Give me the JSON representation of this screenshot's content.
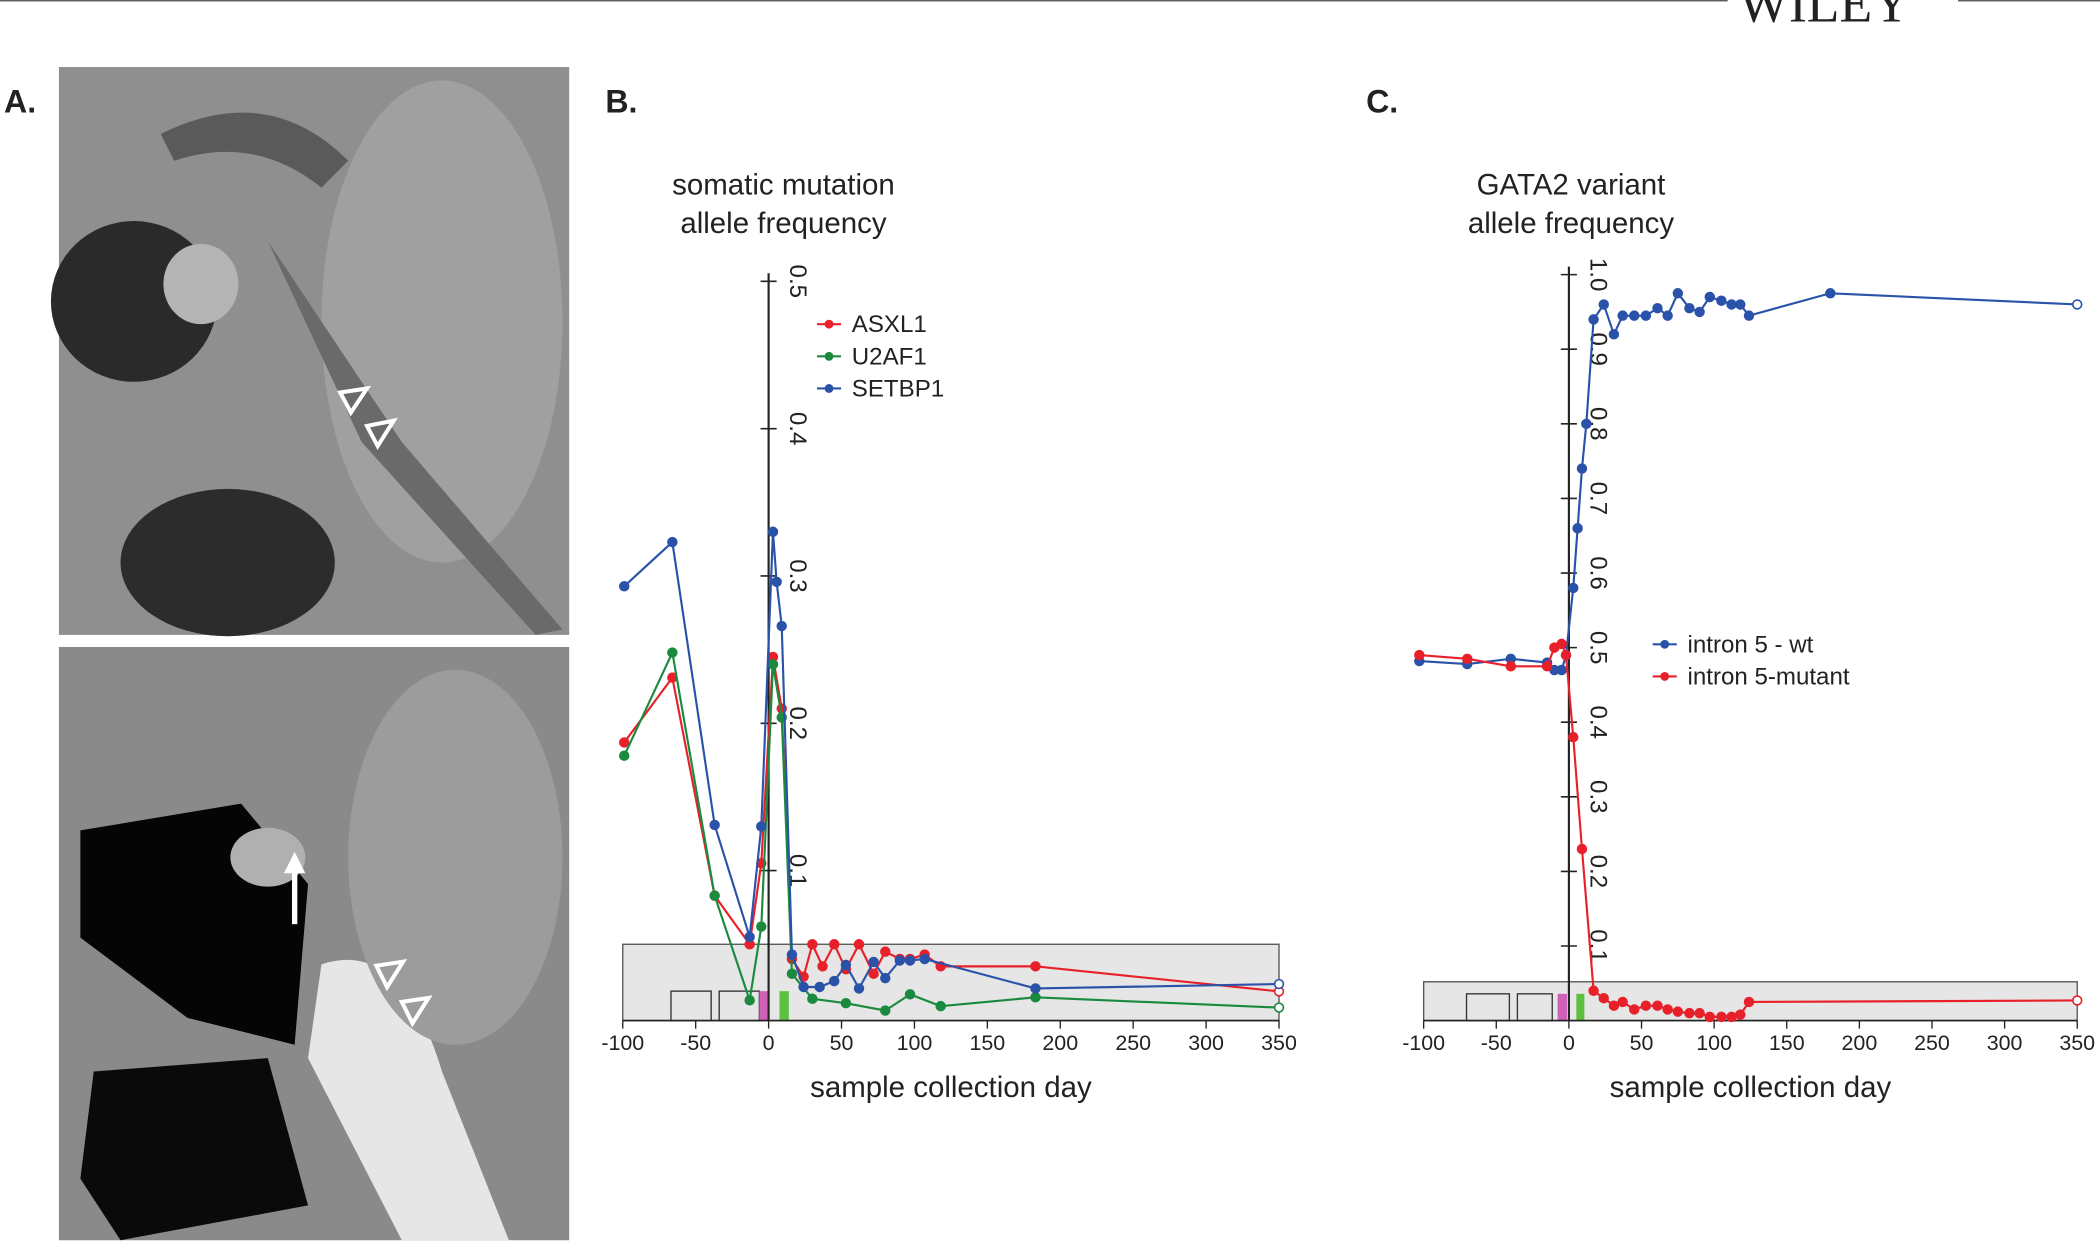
{
  "publisher": "WILEY",
  "panel_labels": [
    "A.",
    "B.",
    "C."
  ],
  "chart_data": [
    {
      "type": "line",
      "title": [
        "somatic mutation",
        "allele frequency"
      ],
      "x_label": "sample collection day",
      "xlim": [
        -100,
        350
      ],
      "xticks": [
        -100,
        -50,
        0,
        50,
        100,
        150,
        200,
        250,
        300,
        350
      ],
      "ylim": [
        0,
        0.5
      ],
      "yticks": [
        0.1,
        0.2,
        0.3,
        0.4,
        0.5
      ],
      "last_marker": "open",
      "series": [
        {
          "name": "ASXL1",
          "color": "#e8202a",
          "x": [
            -99,
            -66,
            -37,
            -13,
            -5,
            3,
            9,
            16,
            24,
            30,
            37,
            45,
            53,
            62,
            72,
            80,
            90,
            97,
            107,
            118,
            183,
            350
          ],
          "values": [
            0.187,
            0.231,
            0.083,
            0.05,
            0.105,
            0.245,
            0.21,
            0.04,
            0.028,
            0.05,
            0.035,
            0.05,
            0.033,
            0.05,
            0.03,
            0.045,
            0.04,
            0.04,
            0.043,
            0.035,
            0.035,
            0.018
          ]
        },
        {
          "name": "U2AF1",
          "color": "#1a8a3e",
          "x": [
            -99,
            -66,
            -37,
            -13,
            -5,
            3,
            9,
            16,
            30,
            53,
            80,
            97,
            118,
            183,
            350
          ],
          "values": [
            0.178,
            0.248,
            0.083,
            0.012,
            0.062,
            0.24,
            0.204,
            0.03,
            0.013,
            0.01,
            0.005,
            0.016,
            0.008,
            0.014,
            0.007
          ]
        },
        {
          "name": "SETBP1",
          "color": "#2a52a8",
          "x": [
            -99,
            -66,
            -37,
            -13,
            -5,
            3,
            5.5,
            9,
            16,
            24,
            35,
            45,
            53,
            62,
            72,
            80,
            90,
            97,
            107,
            183,
            350
          ],
          "values": [
            0.293,
            0.323,
            0.131,
            0.055,
            0.13,
            0.33,
            0.296,
            0.266,
            0.043,
            0.021,
            0.021,
            0.025,
            0.036,
            0.02,
            0.038,
            0.027,
            0.039,
            0.039,
            0.04,
            0.02,
            0.023
          ]
        }
      ]
    },
    {
      "type": "line",
      "title": [
        "GATA2 variant",
        "allele frequency"
      ],
      "x_label": "sample collection day",
      "xlim": [
        -100,
        350
      ],
      "xticks": [
        -100,
        -50,
        0,
        50,
        100,
        150,
        200,
        250,
        300,
        350
      ],
      "ylim": [
        0,
        1
      ],
      "yticks": [
        0.1,
        0.2,
        0.3,
        0.4,
        0.5,
        0.6,
        0.7,
        0.8,
        0.9,
        {
          "value": 1,
          "label": "1.0"
        }
      ],
      "last_marker": "open",
      "series": [
        {
          "name": "intron 5 - wt",
          "color": "#2a52a8",
          "x": [
            -103,
            -70,
            -40,
            -15,
            -10,
            -5,
            -2,
            3,
            6,
            9,
            12,
            17,
            24,
            31,
            37,
            45,
            53,
            61,
            68,
            75,
            83,
            90,
            97,
            105,
            112,
            118,
            124,
            180,
            350
          ],
          "values": [
            0.482,
            0.478,
            0.485,
            0.48,
            0.47,
            0.47,
            0.49,
            0.58,
            0.66,
            0.74,
            0.8,
            0.94,
            0.96,
            0.92,
            0.945,
            0.945,
            0.945,
            0.955,
            0.945,
            0.975,
            0.955,
            0.95,
            0.97,
            0.965,
            0.96,
            0.96,
            0.945,
            0.975,
            0.96
          ]
        },
        {
          "name": "intron 5-mutant",
          "color": "#e8202a",
          "x": [
            -103,
            -70,
            -40,
            -15,
            -10,
            -5,
            -2,
            3,
            9,
            17,
            24,
            31,
            37,
            45,
            53,
            61,
            68,
            75,
            83,
            90,
            97,
            105,
            112,
            118,
            124,
            350
          ],
          "values": [
            0.49,
            0.485,
            0.475,
            0.475,
            0.5,
            0.505,
            0.49,
            0.38,
            0.23,
            0.04,
            0.03,
            0.02,
            0.025,
            0.015,
            0.02,
            0.02,
            0.015,
            0.012,
            0.01,
            0.01,
            0.005,
            0.005,
            0.005,
            0.008,
            0.025,
            0.027
          ]
        }
      ]
    }
  ]
}
